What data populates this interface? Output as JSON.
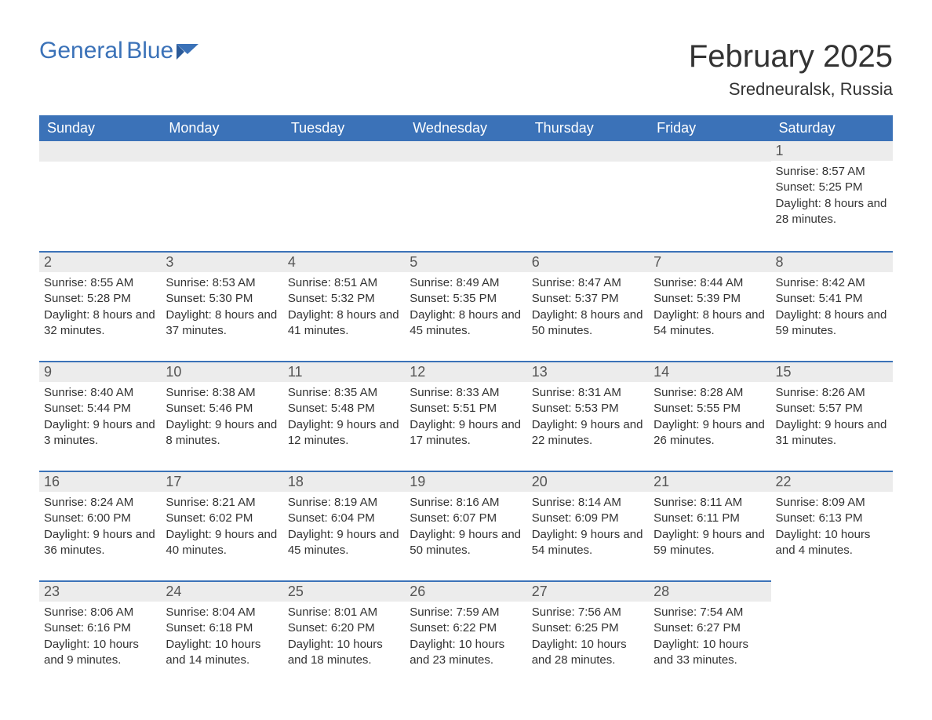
{
  "brand": {
    "name1": "General",
    "name2": "Blue",
    "accent_color": "#3b72b8"
  },
  "title": "February 2025",
  "location": "Sredneuralsk, Russia",
  "colors": {
    "header_bg": "#3b72b8",
    "header_text": "#ffffff",
    "daynum_bg": "#ececec",
    "daynum_border": "#3b72b8",
    "body_text": "#333333",
    "page_bg": "#ffffff"
  },
  "weekdays": [
    "Sunday",
    "Monday",
    "Tuesday",
    "Wednesday",
    "Thursday",
    "Friday",
    "Saturday"
  ],
  "weeks": [
    [
      null,
      null,
      null,
      null,
      null,
      null,
      {
        "day": "1",
        "sunrise": "8:57 AM",
        "sunset": "5:25 PM",
        "daylight": "8 hours and 28 minutes."
      }
    ],
    [
      {
        "day": "2",
        "sunrise": "8:55 AM",
        "sunset": "5:28 PM",
        "daylight": "8 hours and 32 minutes."
      },
      {
        "day": "3",
        "sunrise": "8:53 AM",
        "sunset": "5:30 PM",
        "daylight": "8 hours and 37 minutes."
      },
      {
        "day": "4",
        "sunrise": "8:51 AM",
        "sunset": "5:32 PM",
        "daylight": "8 hours and 41 minutes."
      },
      {
        "day": "5",
        "sunrise": "8:49 AM",
        "sunset": "5:35 PM",
        "daylight": "8 hours and 45 minutes."
      },
      {
        "day": "6",
        "sunrise": "8:47 AM",
        "sunset": "5:37 PM",
        "daylight": "8 hours and 50 minutes."
      },
      {
        "day": "7",
        "sunrise": "8:44 AM",
        "sunset": "5:39 PM",
        "daylight": "8 hours and 54 minutes."
      },
      {
        "day": "8",
        "sunrise": "8:42 AM",
        "sunset": "5:41 PM",
        "daylight": "8 hours and 59 minutes."
      }
    ],
    [
      {
        "day": "9",
        "sunrise": "8:40 AM",
        "sunset": "5:44 PM",
        "daylight": "9 hours and 3 minutes."
      },
      {
        "day": "10",
        "sunrise": "8:38 AM",
        "sunset": "5:46 PM",
        "daylight": "9 hours and 8 minutes."
      },
      {
        "day": "11",
        "sunrise": "8:35 AM",
        "sunset": "5:48 PM",
        "daylight": "9 hours and 12 minutes."
      },
      {
        "day": "12",
        "sunrise": "8:33 AM",
        "sunset": "5:51 PM",
        "daylight": "9 hours and 17 minutes."
      },
      {
        "day": "13",
        "sunrise": "8:31 AM",
        "sunset": "5:53 PM",
        "daylight": "9 hours and 22 minutes."
      },
      {
        "day": "14",
        "sunrise": "8:28 AM",
        "sunset": "5:55 PM",
        "daylight": "9 hours and 26 minutes."
      },
      {
        "day": "15",
        "sunrise": "8:26 AM",
        "sunset": "5:57 PM",
        "daylight": "9 hours and 31 minutes."
      }
    ],
    [
      {
        "day": "16",
        "sunrise": "8:24 AM",
        "sunset": "6:00 PM",
        "daylight": "9 hours and 36 minutes."
      },
      {
        "day": "17",
        "sunrise": "8:21 AM",
        "sunset": "6:02 PM",
        "daylight": "9 hours and 40 minutes."
      },
      {
        "day": "18",
        "sunrise": "8:19 AM",
        "sunset": "6:04 PM",
        "daylight": "9 hours and 45 minutes."
      },
      {
        "day": "19",
        "sunrise": "8:16 AM",
        "sunset": "6:07 PM",
        "daylight": "9 hours and 50 minutes."
      },
      {
        "day": "20",
        "sunrise": "8:14 AM",
        "sunset": "6:09 PM",
        "daylight": "9 hours and 54 minutes."
      },
      {
        "day": "21",
        "sunrise": "8:11 AM",
        "sunset": "6:11 PM",
        "daylight": "9 hours and 59 minutes."
      },
      {
        "day": "22",
        "sunrise": "8:09 AM",
        "sunset": "6:13 PM",
        "daylight": "10 hours and 4 minutes."
      }
    ],
    [
      {
        "day": "23",
        "sunrise": "8:06 AM",
        "sunset": "6:16 PM",
        "daylight": "10 hours and 9 minutes."
      },
      {
        "day": "24",
        "sunrise": "8:04 AM",
        "sunset": "6:18 PM",
        "daylight": "10 hours and 14 minutes."
      },
      {
        "day": "25",
        "sunrise": "8:01 AM",
        "sunset": "6:20 PM",
        "daylight": "10 hours and 18 minutes."
      },
      {
        "day": "26",
        "sunrise": "7:59 AM",
        "sunset": "6:22 PM",
        "daylight": "10 hours and 23 minutes."
      },
      {
        "day": "27",
        "sunrise": "7:56 AM",
        "sunset": "6:25 PM",
        "daylight": "10 hours and 28 minutes."
      },
      {
        "day": "28",
        "sunrise": "7:54 AM",
        "sunset": "6:27 PM",
        "daylight": "10 hours and 33 minutes."
      },
      null
    ]
  ],
  "labels": {
    "sunrise": "Sunrise:",
    "sunset": "Sunset:",
    "daylight": "Daylight:"
  }
}
